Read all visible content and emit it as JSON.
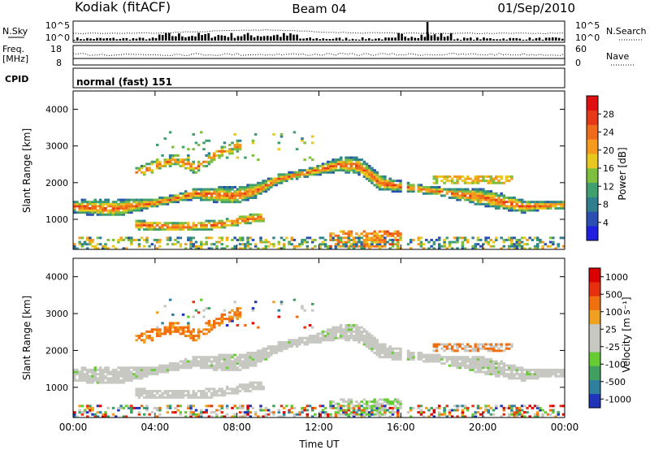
{
  "header": {
    "station": "Kodiak (fitACF)",
    "beam": "Beam 04",
    "date": "01/Sep/2010"
  },
  "aux_panels": {
    "nsky_label": "N.Sky",
    "nsky_ticks": [
      "10^5",
      "10^0"
    ],
    "nsearch_label": "N.Search",
    "nsearch_ticks": [
      "10^5",
      "10^0"
    ],
    "freq_label": "Freq.",
    "freq_unit": "[MHz]",
    "freq_ticks": [
      "18",
      "8"
    ],
    "nave_label": "Nave",
    "nave_ticks": [
      "60",
      "0"
    ],
    "cpid_label": "CPID",
    "cpid_value": "normal (fast) 151"
  },
  "chart_data": [
    {
      "type": "heatmap",
      "name": "power",
      "ylabel": "Slant Range [km]",
      "xlabel": "",
      "x_ticks": [
        "00:00",
        "04:00",
        "08:00",
        "12:00",
        "16:00",
        "20:00",
        "00:00"
      ],
      "x_range_hours": [
        0,
        24
      ],
      "y_ticks": [
        1000,
        2000,
        3000,
        4000
      ],
      "ylim": [
        180,
        4500
      ],
      "colorbar": {
        "label": "Power [dB]",
        "ticks": [
          "4",
          "8",
          "12",
          "16",
          "20",
          "24",
          "28"
        ],
        "colors": [
          "#1f1fe0",
          "#2a4fb0",
          "#2f7f8f",
          "#3f9f6f",
          "#7fbf3f",
          "#e8c81f",
          "#f39a1f",
          "#ef6b1c",
          "#e43a18",
          "#e01010"
        ]
      },
      "bands": [
        {
          "desc": "main ionospheric scatter",
          "points": [
            [
              0,
              1350
            ],
            [
              2,
              1300
            ],
            [
              4,
              1450
            ],
            [
              6,
              1700
            ],
            [
              8,
              1650
            ],
            [
              9,
              1800
            ],
            [
              10,
              2100
            ],
            [
              12,
              2350
            ],
            [
              13,
              2500
            ],
            [
              14,
              2450
            ],
            [
              15,
              2000
            ],
            [
              16,
              1900
            ],
            [
              18,
              1750
            ],
            [
              20,
              1600
            ],
            [
              22,
              1350
            ],
            [
              24,
              1400
            ]
          ]
        },
        {
          "desc": "lower scatter",
          "points": [
            [
              3,
              850
            ],
            [
              5,
              800
            ],
            [
              7,
              850
            ],
            [
              8,
              950
            ],
            [
              9,
              1050
            ]
          ]
        },
        {
          "desc": "upper sporadic scatter",
          "points": [
            [
              3,
              2250
            ],
            [
              5,
              2650
            ],
            [
              6,
              2400
            ],
            [
              7,
              2800
            ],
            [
              8,
              3000
            ]
          ]
        }
      ]
    },
    {
      "type": "heatmap",
      "name": "velocity",
      "ylabel": "Slant Range [km]",
      "xlabel": "Time UT",
      "x_ticks": [
        "00:00",
        "04:00",
        "08:00",
        "12:00",
        "16:00",
        "20:00",
        "00:00"
      ],
      "x_range_hours": [
        0,
        24
      ],
      "y_ticks": [
        1000,
        2000,
        3000,
        4000
      ],
      "ylim": [
        180,
        4500
      ],
      "colorbar": {
        "label": "Velocity [m s⁻¹]",
        "ticks": [
          "1000",
          "500",
          "100",
          "25",
          "-25",
          "-100",
          "-500",
          "-1000"
        ],
        "colors": [
          "#2233bb",
          "#2f7f9f",
          "#3fa05f",
          "#66cc33",
          "#c8c8c2",
          "#c8c8c2",
          "#f0a020",
          "#f07010",
          "#e83010",
          "#dd0000"
        ]
      }
    }
  ]
}
